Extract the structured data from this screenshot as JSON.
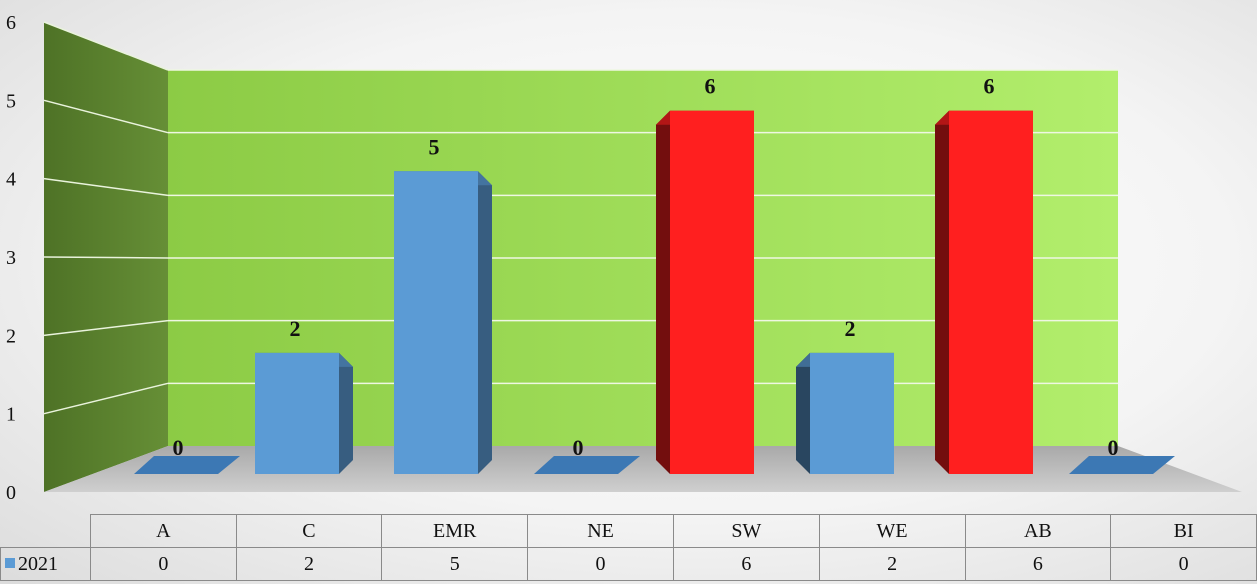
{
  "chart_data": {
    "type": "bar",
    "categories": [
      "A",
      "C",
      "EMR",
      "NE",
      "SW",
      "WE",
      "AB",
      "BI"
    ],
    "series": [
      {
        "name": "2021",
        "values": [
          0,
          2,
          5,
          0,
          6,
          2,
          6,
          0
        ]
      }
    ],
    "yticks": [
      "0",
      "1",
      "2",
      "3",
      "4",
      "5",
      "6"
    ],
    "ylim": [
      0,
      6
    ],
    "grid": true,
    "legend": "table-row-left",
    "colors": {
      "series": "#5b9bd5",
      "highlight": "#ff1f1f",
      "back_wall": "#9fd65a",
      "side_wall": "#5f8532",
      "floor": "#b8b8b8"
    },
    "highlight_categories": [
      "SW",
      "AB"
    ]
  }
}
